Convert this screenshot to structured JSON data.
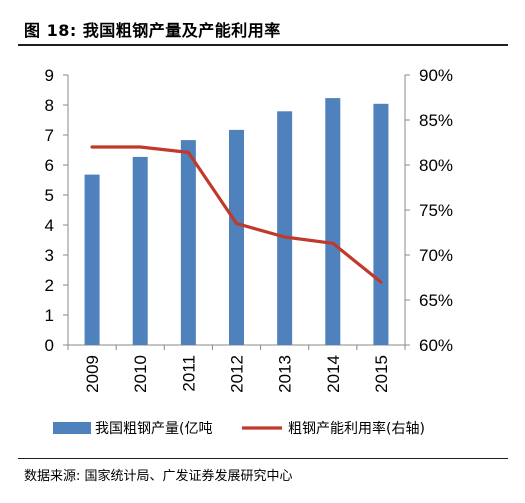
{
  "figure": {
    "title": "图 18: 我国粗钢产量及产能利用率",
    "source": "数据来源: 国家统计局、广发证券发展研究中心"
  },
  "chart_data": {
    "type": "bar+line",
    "categories": [
      "2009",
      "2010",
      "2011",
      "2012",
      "2013",
      "2014",
      "2015"
    ],
    "series": [
      {
        "name": "我国粗钢产量(亿吨",
        "type": "bar",
        "axis": "left",
        "color": "#4f81bd",
        "values": [
          5.68,
          6.27,
          6.83,
          7.17,
          7.79,
          8.23,
          8.04
        ]
      },
      {
        "name": "粗钢产能利用率(右轴)",
        "type": "line",
        "axis": "right",
        "color": "#c0392b",
        "values": [
          82.0,
          82.0,
          81.4,
          73.5,
          72.0,
          71.3,
          67.0
        ]
      }
    ],
    "y_left": {
      "min": 0,
      "max": 9,
      "ticks": [
        "0",
        "1",
        "2",
        "3",
        "4",
        "5",
        "6",
        "7",
        "8",
        "9"
      ]
    },
    "y_right": {
      "min": 60,
      "max": 90,
      "ticks": [
        "60%",
        "65%",
        "70%",
        "75%",
        "80%",
        "85%",
        "90%"
      ]
    },
    "grid": false,
    "legend_position": "bottom"
  }
}
